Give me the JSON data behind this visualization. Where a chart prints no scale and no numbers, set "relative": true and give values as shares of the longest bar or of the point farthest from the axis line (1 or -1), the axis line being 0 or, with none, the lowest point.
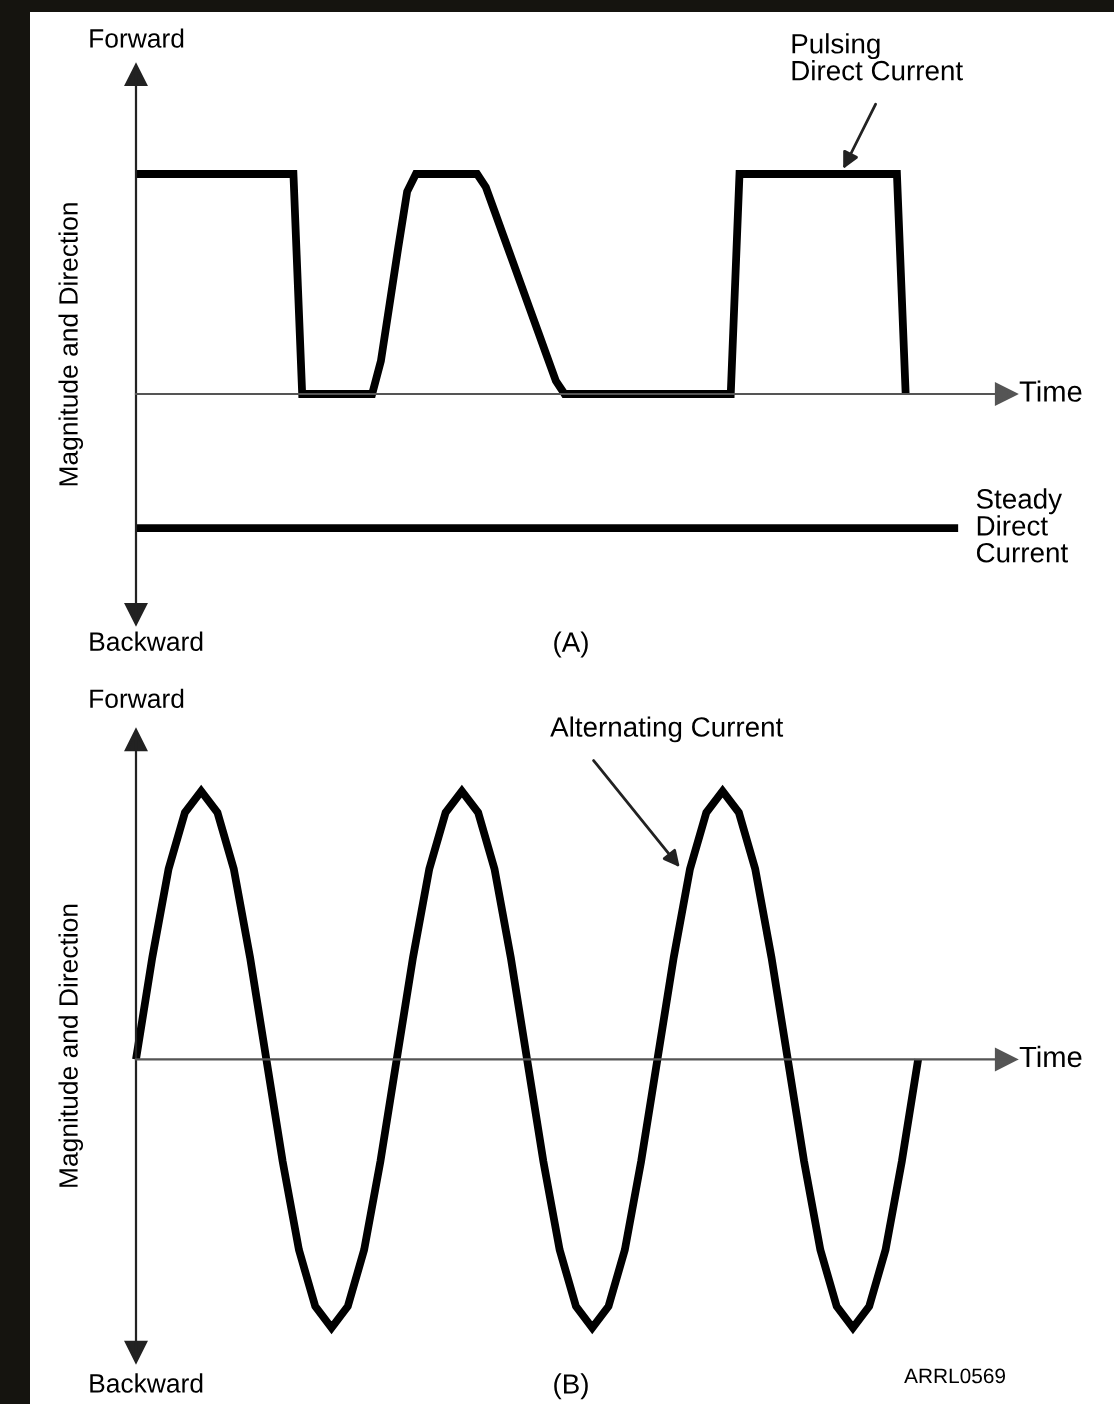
{
  "chart_data": [
    {
      "type": "line",
      "relative": true,
      "title": "(A)",
      "xlabel": "Time",
      "ylabel": "Magnitude and Direction",
      "annotations": [
        "Forward",
        "Backward"
      ],
      "categories": [
        null,
        null,
        null,
        null,
        null,
        null,
        null,
        null,
        null,
        null,
        null,
        null,
        null,
        null,
        null,
        null,
        null,
        null,
        null,
        null,
        null,
        null,
        null,
        null,
        null,
        null,
        null,
        null,
        null,
        null,
        null,
        null,
        null,
        null,
        null,
        null,
        null,
        null,
        null,
        null,
        null,
        null,
        null,
        null,
        null,
        null,
        null,
        null,
        null,
        null,
        null,
        null,
        null,
        null,
        null,
        null,
        null,
        null,
        null,
        null,
        null,
        null,
        null,
        null,
        null,
        null,
        null,
        null,
        null,
        null,
        null,
        null,
        null,
        null,
        null,
        null,
        null,
        null,
        null,
        null,
        null,
        null,
        null,
        null,
        null,
        null,
        null,
        null,
        null,
        null,
        null,
        null,
        null,
        null,
        null
      ],
      "series": [
        {
          "name": "Pulsing Direct Current",
          "color": "#000000",
          "values": [
            1,
            1,
            1,
            1,
            1,
            1,
            1,
            1,
            1,
            1,
            1,
            1,
            1,
            1,
            1,
            1,
            1,
            1,
            1,
            0,
            0,
            0,
            0,
            0,
            0,
            0,
            0,
            0,
            0.15,
            0.41,
            0.67,
            0.92,
            1,
            1,
            1,
            1,
            1,
            1,
            1,
            1,
            0.94,
            0.83,
            0.72,
            0.61,
            0.5,
            0.39,
            0.28,
            0.17,
            0.06,
            0,
            0,
            0,
            0,
            0,
            0,
            0,
            0,
            0,
            0,
            0,
            0,
            0,
            0,
            0,
            0,
            0,
            0,
            0,
            0,
            1,
            1,
            1,
            1,
            1,
            1,
            1,
            1,
            1,
            1,
            1,
            1,
            1,
            1,
            1,
            1,
            1,
            1,
            1,
            0,
            null,
            null,
            null,
            null,
            null,
            null
          ]
        },
        {
          "name": "Steady Direct Current",
          "color": "#000000",
          "values": [
            -0.61,
            -0.61,
            -0.61,
            -0.61,
            -0.61,
            -0.61,
            -0.61,
            -0.61,
            -0.61,
            -0.61,
            -0.61,
            -0.61,
            -0.61,
            -0.61,
            -0.61,
            -0.61,
            -0.61,
            -0.61,
            -0.61,
            -0.61,
            -0.61,
            -0.61,
            -0.61,
            -0.61,
            -0.61,
            -0.61,
            -0.61,
            -0.61,
            -0.61,
            -0.61,
            -0.61,
            -0.61,
            -0.61,
            -0.61,
            -0.61,
            -0.61,
            -0.61,
            -0.61,
            -0.61,
            -0.61,
            -0.61,
            -0.61,
            -0.61,
            -0.61,
            -0.61,
            -0.61,
            -0.61,
            -0.61,
            -0.61,
            -0.61,
            -0.61,
            -0.61,
            -0.61,
            -0.61,
            -0.61,
            -0.61,
            -0.61,
            -0.61,
            -0.61,
            -0.61,
            -0.61,
            -0.61,
            -0.61,
            -0.61,
            -0.61,
            -0.61,
            -0.61,
            -0.61,
            -0.61,
            -0.61,
            -0.61,
            -0.61,
            -0.61,
            -0.61,
            -0.61,
            -0.61,
            -0.61,
            -0.61,
            -0.61,
            -0.61,
            -0.61,
            -0.61,
            -0.61,
            -0.61,
            -0.61,
            -0.61,
            -0.61,
            -0.61,
            -0.61,
            -0.61,
            -0.61,
            -0.61,
            -0.61,
            -0.61,
            -0.61
          ]
        }
      ]
    },
    {
      "type": "line",
      "relative": true,
      "title": "(B)",
      "xlabel": "Time",
      "ylabel": "Magnitude and Direction",
      "annotations": [
        "Forward",
        "Backward",
        "ARRL0569"
      ],
      "categories": [
        null,
        null,
        null,
        null,
        null,
        null,
        null,
        null,
        null,
        null,
        null,
        null,
        null,
        null,
        null,
        null,
        null,
        null,
        null,
        null,
        null,
        null,
        null,
        null,
        null,
        null,
        null,
        null,
        null,
        null,
        null,
        null,
        null,
        null,
        null,
        null,
        null,
        null,
        null,
        null,
        null,
        null,
        null,
        null,
        null,
        null,
        null,
        null,
        null
      ],
      "series": [
        {
          "name": "Alternating Current",
          "color": "#000000",
          "values": [
            0,
            0.38,
            0.71,
            0.92,
            1,
            0.92,
            0.71,
            0.38,
            0,
            -0.38,
            -0.71,
            -0.92,
            -1,
            -0.92,
            -0.71,
            -0.38,
            0,
            0.38,
            0.71,
            0.92,
            1,
            0.92,
            0.71,
            0.38,
            0,
            -0.38,
            -0.71,
            -0.92,
            -1,
            -0.92,
            -0.71,
            -0.38,
            0,
            0.38,
            0.71,
            0.92,
            1,
            0.92,
            0.71,
            0.38,
            0,
            -0.38,
            -0.71,
            -0.92,
            -1,
            -0.92,
            -0.71,
            -0.38,
            0
          ]
        }
      ]
    }
  ]
}
